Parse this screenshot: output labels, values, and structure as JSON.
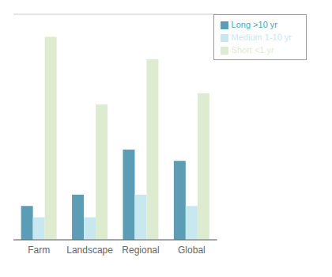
{
  "chart_data": {
    "type": "bar",
    "categories": [
      "Farm",
      "Landscape",
      "Regional",
      "Global"
    ],
    "series": [
      {
        "name": "Long >10 yr",
        "color": "#5b9db5",
        "values": [
          3,
          4,
          8,
          7
        ]
      },
      {
        "name": "Medium 1-10 yr",
        "color": "#c8e8f0",
        "values": [
          2,
          2,
          4,
          3
        ]
      },
      {
        "name": "Short <1 yr",
        "color": "#ddecd0",
        "values": [
          18,
          12,
          16,
          13
        ]
      }
    ],
    "ylim": [
      0,
      20
    ],
    "yticks": [
      0,
      4,
      8,
      12,
      16,
      20
    ],
    "grid": true,
    "legend": "upper right",
    "tick_labels": "x"
  }
}
